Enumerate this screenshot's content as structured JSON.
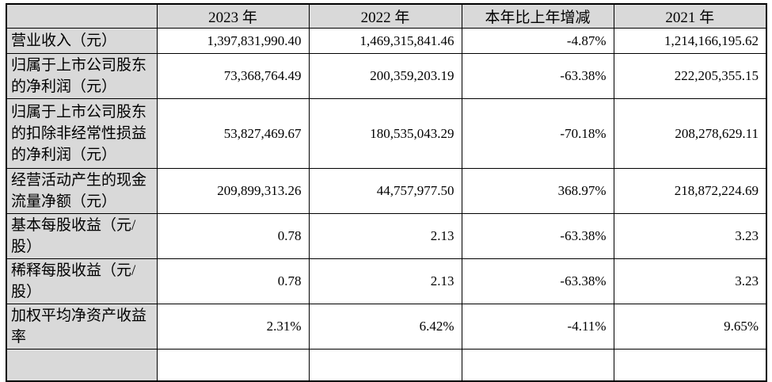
{
  "table": {
    "header": [
      "",
      "2023 年",
      "2022 年",
      "本年比上年增减",
      "2021 年"
    ],
    "rows": [
      {
        "label": "营业收入（元）",
        "values": [
          "1,397,831,990.40",
          "1,469,315,841.46",
          "-4.87%",
          "1,214,166,195.62"
        ]
      },
      {
        "label": "归属于上市公司股东的净利润（元）",
        "values": [
          "73,368,764.49",
          "200,359,203.19",
          "-63.38%",
          "222,205,355.15"
        ]
      },
      {
        "label": "归属于上市公司股东的扣除非经常性损益的净利润（元）",
        "values": [
          "53,827,469.67",
          "180,535,043.29",
          "-70.18%",
          "208,278,629.11"
        ]
      },
      {
        "label": "经营活动产生的现金流量净额（元）",
        "values": [
          "209,899,313.26",
          "44,757,977.50",
          "368.97%",
          "218,872,224.69"
        ]
      },
      {
        "label": "基本每股收益（元/股）",
        "values": [
          "0.78",
          "2.13",
          "-63.38%",
          "3.23"
        ]
      },
      {
        "label": "稀释每股收益（元/股）",
        "values": [
          "0.78",
          "2.13",
          "-63.38%",
          "3.23"
        ]
      },
      {
        "label": "加权平均净资产收益率",
        "values": [
          "2.31%",
          "6.42%",
          "-4.11%",
          "9.65%"
        ]
      }
    ],
    "colors": {
      "header_bg": "#d9d9d9",
      "label_column_bg": "#d9d9d9",
      "border": "#000000",
      "text": "#000000",
      "cell_bg": "#ffffff"
    }
  }
}
